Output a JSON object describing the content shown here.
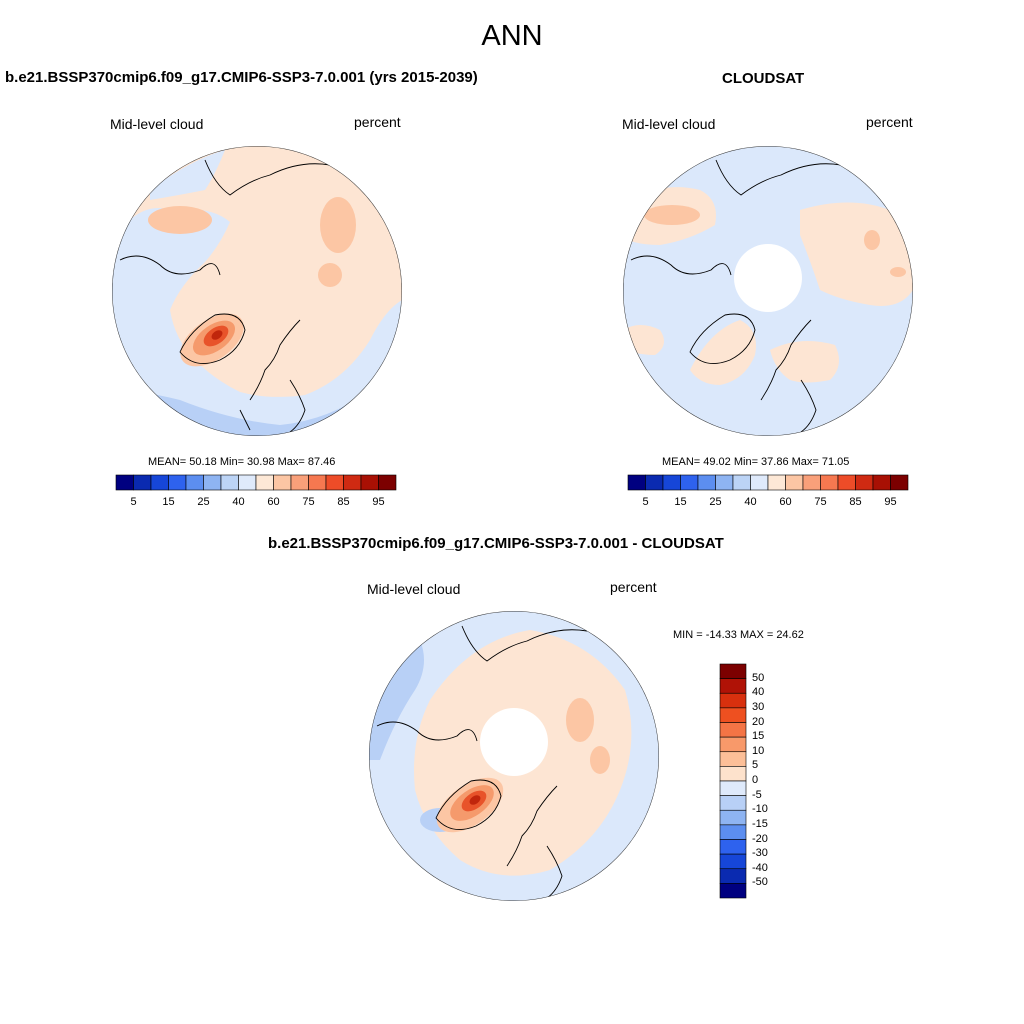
{
  "page": {
    "title": "ANN"
  },
  "panels": {
    "model": {
      "title": "b.e21.BSSP370cmip6.f09_g17.CMIP6-SSP3-7.0.001 (yrs 2015-2039)",
      "variable": "Mid-level cloud",
      "units": "percent",
      "stats": "MEAN=  50.18  Min=  30.98  Max=  87.46",
      "mean": 50.18,
      "min": 30.98,
      "max": 87.46
    },
    "obs": {
      "title": "CLOUDSAT",
      "variable": "Mid-level cloud",
      "units": "percent",
      "stats": "MEAN=  49.02  Min=  37.86  Max=  71.05",
      "mean": 49.02,
      "min": 37.86,
      "max": 71.05
    },
    "diff": {
      "title": "b.e21.BSSP370cmip6.f09_g17.CMIP6-SSP3-7.0.001 - CLOUDSAT",
      "variable": "Mid-level cloud",
      "units": "percent",
      "stats": "MIN = -14.33 MAX =  24.62",
      "min": -14.33,
      "max": 24.62
    }
  },
  "colorbar_abs": {
    "labels": [
      "5",
      "15",
      "25",
      "40",
      "60",
      "75",
      "85",
      "95"
    ],
    "colors": [
      "#000080",
      "#0a2ab0",
      "#1646d8",
      "#2e62ee",
      "#5c8ef0",
      "#8eb4f2",
      "#bcd4f6",
      "#dfeafb",
      "#fde8d6",
      "#fcc6a4",
      "#f9a07a",
      "#f67850",
      "#ed4c28",
      "#cf2a12",
      "#a81004",
      "#7c0000"
    ]
  },
  "colorbar_diff": {
    "labels": [
      "50",
      "40",
      "30",
      "20",
      "15",
      "10",
      "5",
      "0",
      "-5",
      "-10",
      "-15",
      "-20",
      "-30",
      "-40",
      "-50"
    ],
    "colors": [
      "#7c0000",
      "#b01206",
      "#d8300e",
      "#ee5020",
      "#f47445",
      "#f8996a",
      "#fcbf98",
      "#fde2cc",
      "#dfeafb",
      "#b8d0f6",
      "#8eb4f2",
      "#5c8ef0",
      "#2e62ee",
      "#1646d8",
      "#0a2ab0",
      "#000080"
    ]
  },
  "map_colors": {
    "neg_light": "#dbe8fb",
    "neg_mid": "#b8d0f6",
    "neg_strong": "#8eb4f2",
    "pos_light": "#fde5d3",
    "pos_mid": "#fcc6a4",
    "pos_strong": "#f59a6c",
    "pos_hot": "#e8532a",
    "pos_core": "#c0260c",
    "missing": "#ffffff"
  }
}
